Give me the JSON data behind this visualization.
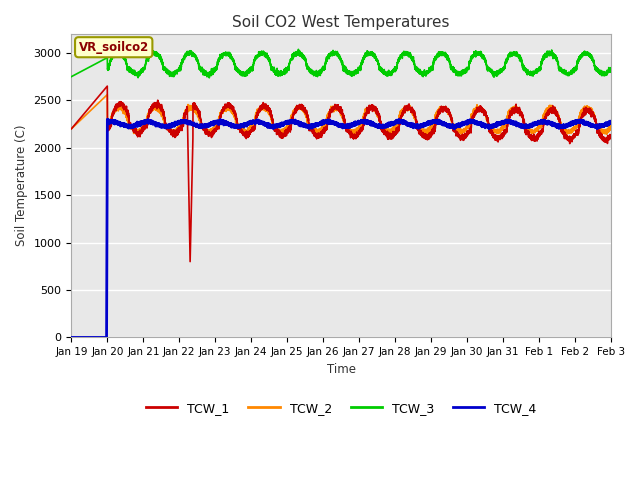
{
  "title": "Soil CO2 West Temperatures",
  "ylabel": "Soil Temperature (C)",
  "xlabel": "Time",
  "ylim": [
    0,
    3200
  ],
  "yticks": [
    0,
    500,
    1000,
    1500,
    2000,
    2500,
    3000
  ],
  "plot_bg_color": "#e8e8e8",
  "fig_bg_color": "#ffffff",
  "annotation_label": "VR_soilco2",
  "series_colors": {
    "TCW_1": "#cc0000",
    "TCW_2": "#ff8800",
    "TCW_3": "#00cc00",
    "TCW_4": "#0000cc"
  },
  "x_tick_labels": [
    "Jan 19",
    "Jan 20",
    "Jan 21",
    "Jan 22",
    "Jan 23",
    "Jan 24",
    "Jan 25",
    "Jan 26",
    "Jan 27",
    "Jan 28",
    "Jan 29",
    "Jan 30",
    "Jan 31",
    "Feb 1",
    "Feb 2",
    "Feb 3"
  ],
  "n_points": 6000
}
